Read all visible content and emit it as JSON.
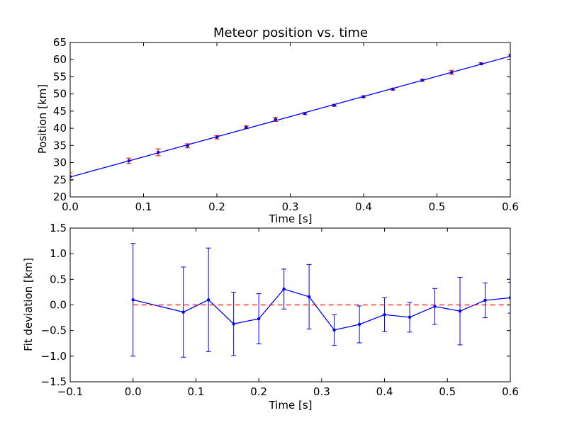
{
  "chart_data": [
    {
      "type": "scatter",
      "title": "Meteor position vs. time",
      "xlabel": "Time [s]",
      "ylabel": "Position [km]",
      "xlim": [
        0.0,
        0.6
      ],
      "ylim": [
        20,
        65
      ],
      "xticks": [
        0.0,
        0.1,
        0.2,
        0.3,
        0.4,
        0.5,
        0.6
      ],
      "xtick_labels": [
        "0.0",
        "0.1",
        "0.2",
        "0.3",
        "0.4",
        "0.5",
        "0.6"
      ],
      "yticks": [
        20,
        25,
        30,
        35,
        40,
        45,
        50,
        55,
        60,
        65
      ],
      "ytick_labels": [
        "20",
        "25",
        "30",
        "35",
        "40",
        "45",
        "50",
        "55",
        "60",
        "65"
      ],
      "grid": false,
      "series": [
        {
          "kind": "errorbar",
          "color": "#ff0000",
          "marker_color": "#0000cc",
          "x": [
            0.0,
            0.08,
            0.12,
            0.16,
            0.2,
            0.24,
            0.28,
            0.32,
            0.36,
            0.4,
            0.44,
            0.48,
            0.52,
            0.56,
            0.6
          ],
          "y": [
            25.9,
            30.5,
            33.0,
            34.9,
            37.4,
            40.3,
            42.6,
            44.3,
            46.7,
            49.2,
            51.4,
            54.0,
            56.3,
            58.8,
            61.2
          ],
          "yerr": [
            1.1,
            0.8,
            1.0,
            0.6,
            0.5,
            0.4,
            0.6,
            0.3,
            0.3,
            0.3,
            0.3,
            0.3,
            0.6,
            0.3,
            0.3
          ]
        },
        {
          "kind": "line",
          "color": "#0000ff",
          "x": [
            0.0,
            0.6
          ],
          "y": [
            25.8,
            61.0
          ]
        }
      ]
    },
    {
      "type": "line",
      "title": "",
      "xlabel": "Time [s]",
      "ylabel": "Fit deviation [km]",
      "xlim": [
        -0.1,
        0.6
      ],
      "ylim": [
        -1.5,
        1.5
      ],
      "xticks": [
        -0.1,
        0.0,
        0.1,
        0.2,
        0.3,
        0.4,
        0.5,
        0.6
      ],
      "xtick_labels": [
        "−0.1",
        "0.0",
        "0.1",
        "0.2",
        "0.3",
        "0.4",
        "0.5",
        "0.6"
      ],
      "yticks": [
        -1.5,
        -1.0,
        -0.5,
        0.0,
        0.5,
        1.0,
        1.5
      ],
      "ytick_labels": [
        "−1.5",
        "−1.0",
        "−0.5",
        "0.0",
        "0.5",
        "1.0",
        "1.5"
      ],
      "grid": false,
      "series": [
        {
          "kind": "errorbar_line",
          "color": "#0000ff",
          "x": [
            0.0,
            0.08,
            0.12,
            0.16,
            0.2,
            0.24,
            0.28,
            0.32,
            0.36,
            0.4,
            0.44,
            0.48,
            0.52,
            0.56,
            0.6
          ],
          "y": [
            0.1,
            -0.14,
            0.1,
            -0.37,
            -0.27,
            0.31,
            0.16,
            -0.49,
            -0.38,
            -0.19,
            -0.24,
            -0.03,
            -0.12,
            0.09,
            0.14
          ],
          "yerr": [
            1.1,
            0.88,
            1.01,
            0.62,
            0.49,
            0.39,
            0.63,
            0.3,
            0.36,
            0.33,
            0.29,
            0.35,
            0.66,
            0.34,
            0.3
          ]
        },
        {
          "kind": "hline",
          "color": "#ff0000",
          "style": "dashed",
          "y": 0.0,
          "x": [
            0.0,
            0.6
          ]
        }
      ]
    }
  ]
}
